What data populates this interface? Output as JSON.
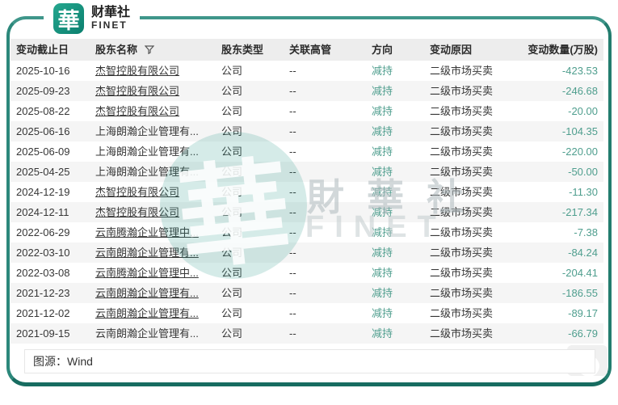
{
  "brand": {
    "logo_char": "華",
    "name_cn": "财華社",
    "name_en": "FINET"
  },
  "table": {
    "headers": [
      "变动截止日",
      "股东名称",
      "股东类型",
      "关联高管",
      "方向",
      "变动原因",
      "变动数量(万股)"
    ],
    "rows": [
      {
        "date": "2025-10-16",
        "name": "杰智控股有限公司",
        "link": true,
        "type": "公司",
        "exec": "--",
        "direction": "减持",
        "reason": "二级市场买卖",
        "qty": "-423.53"
      },
      {
        "date": "2025-09-23",
        "name": "杰智控股有限公司",
        "link": true,
        "type": "公司",
        "exec": "--",
        "direction": "减持",
        "reason": "二级市场买卖",
        "qty": "-246.68"
      },
      {
        "date": "2025-08-22",
        "name": "杰智控股有限公司",
        "link": true,
        "type": "公司",
        "exec": "--",
        "direction": "减持",
        "reason": "二级市场买卖",
        "qty": "-20.00"
      },
      {
        "date": "2025-06-16",
        "name": "上海朗瀚企业管理有...",
        "link": false,
        "type": "公司",
        "exec": "--",
        "direction": "减持",
        "reason": "二级市场买卖",
        "qty": "-104.35"
      },
      {
        "date": "2025-06-09",
        "name": "上海朗瀚企业管理有...",
        "link": false,
        "type": "公司",
        "exec": "--",
        "direction": "减持",
        "reason": "二级市场买卖",
        "qty": "-220.00"
      },
      {
        "date": "2025-04-25",
        "name": "上海朗瀚企业管理有...",
        "link": false,
        "type": "公司",
        "exec": "--",
        "direction": "减持",
        "reason": "二级市场买卖",
        "qty": "-50.00"
      },
      {
        "date": "2024-12-19",
        "name": "杰智控股有限公司",
        "link": true,
        "type": "公司",
        "exec": "--",
        "direction": "减持",
        "reason": "二级市场买卖",
        "qty": "-11.30"
      },
      {
        "date": "2024-12-11",
        "name": "杰智控股有限公司",
        "link": true,
        "type": "公司",
        "exec": "--",
        "direction": "减持",
        "reason": "二级市场买卖",
        "qty": "-217.34"
      },
      {
        "date": "2022-06-29",
        "name": "云南腾瀚企业管理中...",
        "link": true,
        "type": "公司",
        "exec": "--",
        "direction": "减持",
        "reason": "二级市场买卖",
        "qty": "-7.38"
      },
      {
        "date": "2022-03-10",
        "name": "云南朗瀚企业管理有...",
        "link": true,
        "type": "公司",
        "exec": "--",
        "direction": "减持",
        "reason": "二级市场买卖",
        "qty": "-84.24"
      },
      {
        "date": "2022-03-08",
        "name": "云南腾瀚企业管理中...",
        "link": true,
        "type": "公司",
        "exec": "--",
        "direction": "减持",
        "reason": "二级市场买卖",
        "qty": "-204.41"
      },
      {
        "date": "2021-12-23",
        "name": "云南朗瀚企业管理有...",
        "link": true,
        "type": "公司",
        "exec": "--",
        "direction": "减持",
        "reason": "二级市场买卖",
        "qty": "-186.55"
      },
      {
        "date": "2021-12-02",
        "name": "云南朗瀚企业管理有...",
        "link": true,
        "type": "公司",
        "exec": "--",
        "direction": "减持",
        "reason": "二级市场买卖",
        "qty": "-89.17"
      },
      {
        "date": "2021-09-15",
        "name": "云南朗瀚企业管理有...",
        "link": false,
        "type": "公司",
        "exec": "--",
        "direction": "减持",
        "reason": "二级市场买卖",
        "qty": "-66.79"
      }
    ]
  },
  "watermark": {
    "logo_char": "華",
    "text_cn": "財華社",
    "text_en": "FINET"
  },
  "footer": {
    "source_label": "图源：",
    "source_value": "Wind"
  },
  "colors": {
    "frame_accent": "#2a8577",
    "logo_teal": "#13977f",
    "teal_text": "#4f9e8e",
    "header_bg": "#ededed",
    "stripe_bg": "#f5f5f5"
  }
}
